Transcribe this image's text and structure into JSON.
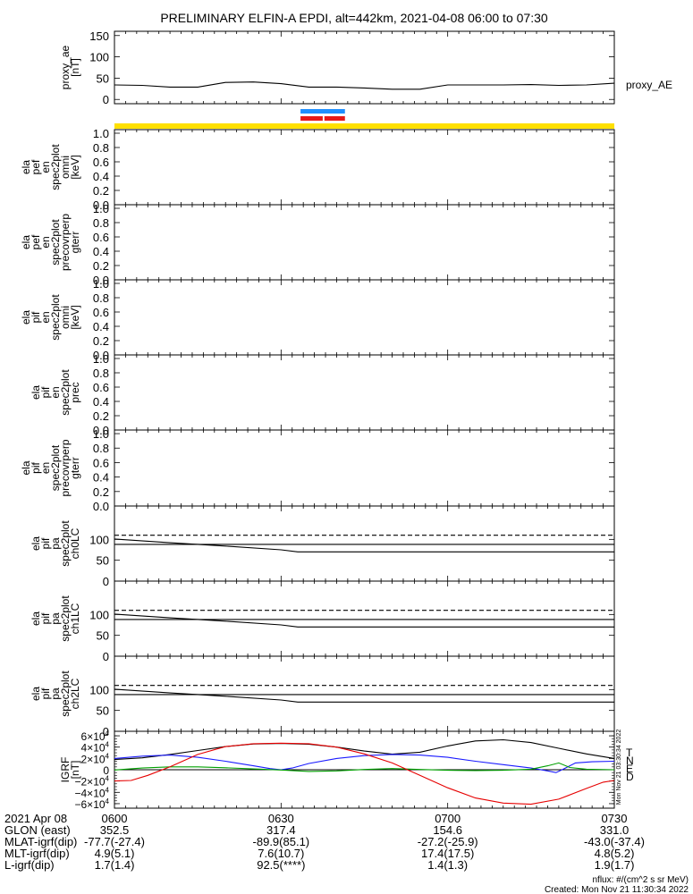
{
  "title": "PRELIMINARY ELFIN-A EPDI, alt=442km, 2021-04-08 06:00 to 07:30",
  "chart_data": {
    "type": "line",
    "time_range": [
      "06:00",
      "07:30"
    ],
    "panels": [
      {
        "id": "proxy_ae",
        "ylabel": [
          "proxy_ae",
          "[nT]"
        ],
        "yticks": [
          0,
          50,
          100,
          150
        ],
        "ylim": [
          -10,
          160
        ],
        "legend": "proxy_AE",
        "series": [
          {
            "name": "proxy_AE",
            "color": "#000000",
            "x": [
              0,
              5,
              10,
              15,
              20,
              25,
              30,
              35,
              40,
              45,
              50,
              55,
              60,
              65,
              70,
              75,
              80,
              85,
              90
            ],
            "y": [
              34,
              33,
              29,
              29,
              40,
              41,
              37,
              29,
              29,
              27,
              24,
              24,
              34,
              34,
              34,
              35,
              33,
              34,
              38
            ]
          }
        ]
      },
      {
        "id": "ela_pef_en_spec2plot_omni",
        "ylabel": [
          "ela",
          "pef",
          "en",
          "spec2plot",
          "omni",
          "[keV]"
        ],
        "yticks": [
          "0.0",
          "0.2",
          "0.4",
          "0.6",
          "0.8",
          "1.0"
        ],
        "ylim": [
          0,
          1.05
        ]
      },
      {
        "id": "ela_pef_en_spec2plot_precovrperp_gterr",
        "ylabel": [
          "ela",
          "pef",
          "en",
          "spec2plot",
          "precovrperp",
          "gterr"
        ],
        "yticks": [
          "0.0",
          "0.2",
          "0.4",
          "0.6",
          "0.8",
          "1.0"
        ],
        "ylim": [
          0,
          1.05
        ]
      },
      {
        "id": "ela_pif_en_spec2plot_omni",
        "ylabel": [
          "ela",
          "pif",
          "en",
          "spec2plot",
          "omni",
          "[keV]"
        ],
        "yticks": [
          "0.0",
          "0.2",
          "0.4",
          "0.6",
          "0.8",
          "1.0"
        ],
        "ylim": [
          0,
          1.05
        ]
      },
      {
        "id": "ela_pif_en_spec2plot_prec",
        "ylabel": [
          "ela",
          "pif",
          "en",
          "spec2plot",
          "prec"
        ],
        "yticks": [
          "0.0",
          "0.2",
          "0.4",
          "0.6",
          "0.8",
          "1.0"
        ],
        "ylim": [
          0,
          1.05
        ]
      },
      {
        "id": "ela_pif_en_spec2plot_precovrperp_gterr",
        "ylabel": [
          "ela",
          "pif",
          "en",
          "spec2plot",
          "precovrperp",
          "gterr"
        ],
        "yticks": [
          "0.0",
          "0.2",
          "0.4",
          "0.6",
          "0.8",
          "1.0"
        ],
        "ylim": [
          0,
          1.05
        ]
      },
      {
        "id": "ela_pif_pa_spec2plot_ch0LC",
        "ylabel": [
          "ela",
          "pif",
          "pa",
          "spec2plot",
          "ch0LC"
        ],
        "yticks": [
          0,
          50,
          100
        ],
        "ylim": [
          0,
          180
        ],
        "series": [
          {
            "style": "dashed",
            "x": [
              0,
              90
            ],
            "y": [
              110,
              110
            ]
          },
          {
            "style": "solid",
            "x": [
              0,
              90
            ],
            "y": [
              88,
              88
            ]
          },
          {
            "style": "solid",
            "x": [
              0,
              10,
              20,
              30,
              33,
              40,
              50,
              60,
              70,
              80,
              90
            ],
            "y": [
              101,
              92,
              84,
              75,
              70,
              70,
              70,
              70,
              70,
              70,
              70
            ]
          }
        ]
      },
      {
        "id": "ela_pif_pa_spec2plot_ch1LC",
        "ylabel": [
          "ela",
          "pif",
          "pa",
          "spec2plot",
          "ch1LC"
        ],
        "yticks": [
          0,
          50,
          100
        ],
        "ylim": [
          0,
          180
        ],
        "series": [
          {
            "style": "dashed",
            "x": [
              0,
              90
            ],
            "y": [
              110,
              110
            ]
          },
          {
            "style": "solid",
            "x": [
              0,
              90
            ],
            "y": [
              88,
              88
            ]
          },
          {
            "style": "solid",
            "x": [
              0,
              10,
              20,
              30,
              33,
              40,
              50,
              60,
              70,
              80,
              90
            ],
            "y": [
              101,
              92,
              84,
              75,
              70,
              70,
              70,
              70,
              70,
              70,
              70
            ]
          }
        ]
      },
      {
        "id": "ela_pif_pa_spec2plot_ch2LC",
        "ylabel": [
          "ela",
          "pif",
          "pa",
          "spec2plot",
          "ch2LC"
        ],
        "yticks": [
          0,
          50,
          100
        ],
        "ylim": [
          0,
          180
        ],
        "series": [
          {
            "style": "dashed",
            "x": [
              0,
              90
            ],
            "y": [
              110,
              110
            ]
          },
          {
            "style": "solid",
            "x": [
              0,
              90
            ],
            "y": [
              88,
              88
            ]
          },
          {
            "style": "solid",
            "x": [
              0,
              10,
              20,
              30,
              33,
              40,
              50,
              60,
              70,
              80,
              90
            ],
            "y": [
              101,
              92,
              84,
              75,
              70,
              70,
              70,
              70,
              70,
              70,
              70
            ]
          }
        ]
      },
      {
        "id": "igrf",
        "ylabel": [
          "IGRF",
          "[nT]"
        ],
        "yticks": [
          60000,
          40000,
          20000,
          0,
          -20000,
          -40000,
          -60000
        ],
        "ytick_labels": [
          [
            "6",
            "4"
          ],
          [
            "4",
            "4"
          ],
          [
            "2",
            "4"
          ],
          [
            "0",
            ""
          ],
          [
            "−2",
            "4"
          ],
          [
            "−4",
            "4"
          ],
          [
            "−6",
            "4"
          ]
        ],
        "ylim": [
          -68000,
          68000
        ],
        "legend": [
          "T",
          "N",
          "E",
          "D"
        ],
        "colors": {
          "T": "#000000",
          "N": "#1a1aff",
          "E": "#00a000",
          "D": "#e60000"
        },
        "series": [
          {
            "name": "T",
            "color": "#000000",
            "x": [
              0,
              5,
              10,
              15,
              20,
              25,
              30,
              35,
              40,
              45,
              50,
              55,
              60,
              65,
              70,
              75,
              80,
              85,
              90
            ],
            "y": [
              18000,
              21000,
              27000,
              34000,
              41000,
              45500,
              46500,
              45000,
              40000,
              33000,
              27500,
              31000,
              42000,
              51000,
              53000,
              48000,
              38000,
              28000,
              20000
            ]
          },
          {
            "name": "N",
            "color": "#1a1aff",
            "x": [
              0,
              5,
              10,
              15,
              20,
              25,
              28,
              30,
              32,
              35,
              40,
              45,
              50,
              55,
              60,
              65,
              70,
              75,
              78,
              79.5,
              81,
              83,
              86,
              90
            ],
            "y": [
              20000,
              24000,
              26000,
              22000,
              15000,
              7000,
              2000,
              0,
              3000,
              11000,
              20000,
              25000,
              27000,
              26000,
              22000,
              15000,
              9000,
              3000,
              -2000,
              -5000,
              2000,
              12000,
              14000,
              15000
            ]
          },
          {
            "name": "E",
            "color": "#00a000",
            "x": [
              0,
              5,
              10,
              15,
              20,
              25,
              30,
              35,
              40,
              45,
              50,
              55,
              60,
              65,
              70,
              75,
              78,
              80,
              82,
              85,
              90
            ],
            "y": [
              -500,
              3000,
              5000,
              5000,
              3500,
              1500,
              -500,
              -3000,
              -2000,
              500,
              2000,
              500,
              -1000,
              -1500,
              -1000,
              1000,
              7000,
              12000,
              4000,
              1000,
              0
            ]
          },
          {
            "name": "D",
            "color": "#e60000",
            "x": [
              0,
              3,
              6,
              10,
              15,
              20,
              25,
              30,
              35,
              40,
              45,
              50,
              55,
              60,
              65,
              70,
              75,
              80,
              85,
              88,
              90
            ],
            "y": [
              -20000,
              -19000,
              -10000,
              5000,
              27000,
              41000,
              46000,
              47000,
              46000,
              40000,
              28000,
              12000,
              -10000,
              -32000,
              -50000,
              -59000,
              -61000,
              -52000,
              -33000,
              -22000,
              -19000
            ]
          }
        ]
      }
    ],
    "bars": {
      "yellow_strip": {
        "color": "#ffe000",
        "x": [
          0,
          90
        ]
      },
      "blue_bar": {
        "color": "#1e8fff",
        "x": [
          33.5,
          41.5
        ]
      },
      "red_bars": {
        "color": "#e61919",
        "segments": [
          [
            33.5,
            37.5
          ],
          [
            37.8,
            41.5
          ]
        ]
      }
    },
    "bottom_axis": {
      "date": "2021 Apr 08",
      "rows": [
        {
          "label": "",
          "values": [
            "0600",
            "0630",
            "0700",
            "0730"
          ]
        },
        {
          "label": "GLON (east)",
          "values": [
            "352.5",
            "317.4",
            "154.6",
            "331.0"
          ]
        },
        {
          "label": "MLAT-igrf(dip)",
          "values": [
            "-77.7(-27.4)",
            "-89.9(85.1)",
            "-27.2(-25.9)",
            "-43.0(-37.4)"
          ]
        },
        {
          "label": "MLT-igrf(dip)",
          "values": [
            "4.9(5.1)",
            "7.6(10.7)",
            "17.4(17.5)",
            "4.8(5.2)"
          ]
        },
        {
          "label": "L-igrf(dip)",
          "values": [
            "1.7(1.4)",
            "92.5(****)",
            "1.4(1.3)",
            "1.9(1.7)"
          ]
        }
      ]
    }
  },
  "footer": {
    "units": "nflux: #/(cm^2 s sr MeV)",
    "created": "Created: Mon Nov 21 11:30:34 2022",
    "side_stamp": "Mon Nov 21 03:30:34 2022"
  }
}
